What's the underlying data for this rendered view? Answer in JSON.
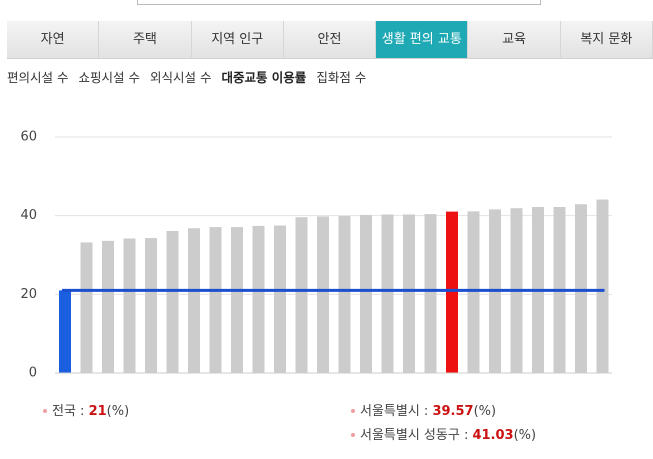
{
  "tabs": [
    {
      "label": "자연"
    },
    {
      "label": "주택"
    },
    {
      "label": "지역 인구"
    },
    {
      "label": "안전"
    },
    {
      "label": "생활 편의 교통",
      "active": true
    },
    {
      "label": "교육"
    },
    {
      "label": "복지 문화"
    }
  ],
  "subtabs": [
    {
      "label": "편의시설 수"
    },
    {
      "label": "쇼핑시설 수"
    },
    {
      "label": "외식시설 수"
    },
    {
      "label": "대중교통 이용률",
      "active": true
    },
    {
      "label": "집화점 수"
    }
  ],
  "chart_data": {
    "type": "bar",
    "values": [
      21,
      33.2,
      33.6,
      34.2,
      34.3,
      36.1,
      36.8,
      37.1,
      37.1,
      37.4,
      37.5,
      39.6,
      39.8,
      39.9,
      40.2,
      40.3,
      40.3,
      40.4,
      41.03,
      41.1,
      41.6,
      41.9,
      42.2,
      42.2,
      42.9,
      44.1
    ],
    "colors": [
      "#1a5fe0",
      "#cccccc",
      "#cccccc",
      "#cccccc",
      "#cccccc",
      "#cccccc",
      "#cccccc",
      "#cccccc",
      "#cccccc",
      "#cccccc",
      "#cccccc",
      "#cccccc",
      "#cccccc",
      "#cccccc",
      "#cccccc",
      "#cccccc",
      "#cccccc",
      "#cccccc",
      "#ee1111",
      "#cccccc",
      "#cccccc",
      "#cccccc",
      "#cccccc",
      "#cccccc",
      "#cccccc",
      "#cccccc"
    ],
    "ylim": [
      0,
      60
    ],
    "yticks": [
      0,
      20,
      40,
      60
    ],
    "grid": true,
    "reference_line_color": "#1a4fd0",
    "legend": [
      {
        "label": "전국 : ",
        "value": 21,
        "unit": "(%)"
      },
      {
        "label": "서울특별시 : ",
        "value": 39.57,
        "unit": "(%)"
      },
      {
        "label": "서울특별시 성동구 : ",
        "value": 41.03,
        "unit": "(%)"
      }
    ]
  }
}
